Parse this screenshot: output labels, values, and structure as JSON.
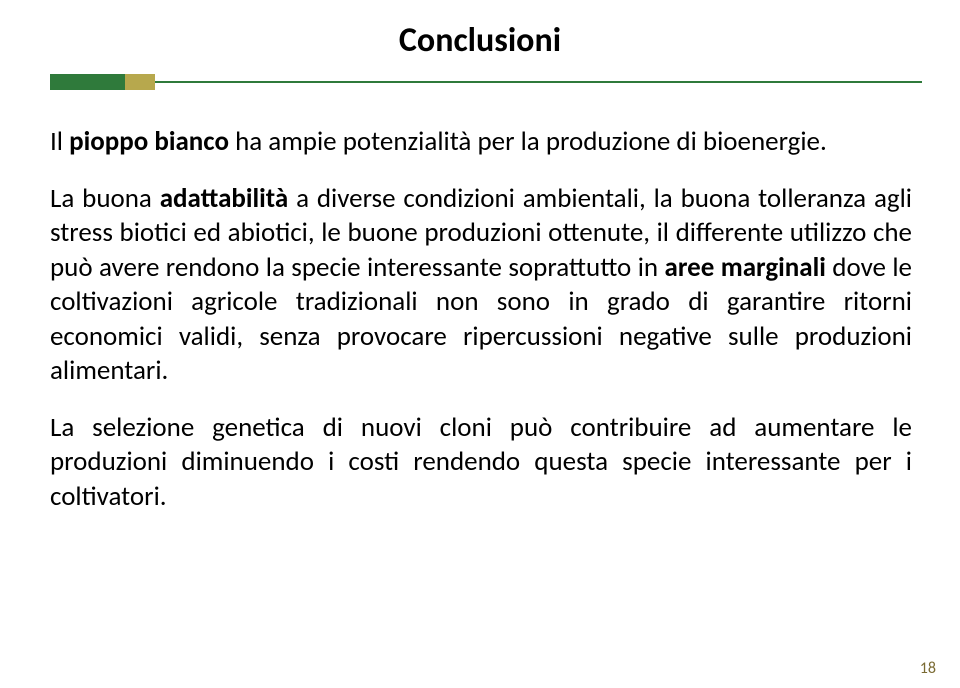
{
  "title": "Conclusioni",
  "title_fontsize": 34,
  "title_weight": "700",
  "title_color": "#000000",
  "rule": {
    "green": "#2f7a3b",
    "olive": "#b7a84d",
    "line_color": "#2f7a3b"
  },
  "paragraphs": [
    {
      "runs": [
        {
          "text": "Il ",
          "bold": false
        },
        {
          "text": "pioppo bianco ",
          "bold": true
        },
        {
          "text": "ha ampie potenzialità per la produzione di bioenergie.",
          "bold": false
        }
      ]
    },
    {
      "runs": [
        {
          "text": "La buona ",
          "bold": false
        },
        {
          "text": "adattabilità ",
          "bold": true
        },
        {
          "text": "a diverse condizioni ambientali, la buona tolleranza agli stress biotici ed abiotici, le buone produzioni ottenute, il differente utilizzo che può avere rendono la specie interessante soprattutto in ",
          "bold": false
        },
        {
          "text": "aree marginali ",
          "bold": true
        },
        {
          "text": "dove le coltivazioni agricole tradizionali non sono in grado di garantire ritorni economici validi, senza provocare ripercussioni negative sulle produzioni alimentari.",
          "bold": false
        }
      ]
    },
    {
      "runs": [
        {
          "text": "La selezione genetica di nuovi cloni può contribuire ad aumentare le produzioni diminuendo i costi  rendendo questa specie interessante per i coltivatori.",
          "bold": false
        }
      ]
    }
  ],
  "body_fontsize": 27,
  "body_lineheight": 1.28,
  "body_color": "#000000",
  "page_number": "18",
  "page_number_fontsize": 16,
  "page_number_color": "#7a6a32",
  "background_color": "#ffffff"
}
